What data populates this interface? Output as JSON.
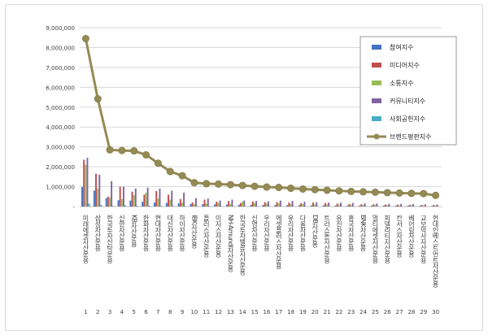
{
  "chart_data": {
    "type": "bar",
    "categories": [
      "미래에셋자산운용",
      "삼성자산운용",
      "한국투자신탁운용",
      "신한자산운용",
      "KB자산운용",
      "한화자산운용",
      "현대자산운용",
      "대신자산운용",
      "하이자산운용",
      "IBK자산운용",
      "플러스자산운용",
      "이지스자산운용",
      "NH-Amundi자산운용",
      "한국투자밸류자산운용",
      "신영자산운용",
      "우리자산운용",
      "에셋플러스자산운용",
      "유리자산운용",
      "다올자산운용",
      "DB자산운용",
      "트러스톤자산운용",
      "유진자산운용",
      "흥국자산운용",
      "BNK자산운용",
      "멀티에셋자산운용",
      "피델리티자산운용",
      "칸서스자산운용",
      "베어링자산운용",
      "교보악사자산운용",
      "현대인베스트먼트자산운용"
    ],
    "rank_labels": [
      "1",
      "2",
      "3",
      "4",
      "5",
      "6",
      "7",
      "8",
      "9",
      "10",
      "11",
      "12",
      "13",
      "14",
      "15",
      "16",
      "17",
      "18",
      "19",
      "20",
      "21",
      "22",
      "23",
      "24",
      "25",
      "26",
      "27",
      "28",
      "29",
      "30"
    ],
    "series": [
      {
        "name": "참여지수",
        "color": "#4472c4",
        "values": [
          980000,
          800000,
          420000,
          320000,
          300000,
          240000,
          200000,
          180000,
          160000,
          130000,
          120000,
          110000,
          100000,
          90000,
          85000,
          80000,
          75000,
          70000,
          65000,
          60000,
          55000,
          50000,
          48000,
          45000,
          42000,
          40000,
          38000,
          35000,
          32000,
          30000
        ]
      },
      {
        "name": "미디어지수",
        "color": "#c0504d",
        "values": [
          2350000,
          1650000,
          500000,
          1000000,
          750000,
          600000,
          780000,
          600000,
          380000,
          200000,
          350000,
          250000,
          280000,
          180000,
          260000,
          220000,
          220000,
          200000,
          170000,
          200000,
          180000,
          150000,
          130000,
          120000,
          110000,
          100000,
          100000,
          90000,
          80000,
          80000
        ]
      },
      {
        "name": "소통지수",
        "color": "#9bbb59",
        "values": [
          2100000,
          900000,
          450000,
          380000,
          580000,
          700000,
          400000,
          350000,
          200000,
          120000,
          150000,
          180000,
          120000,
          250000,
          170000,
          150000,
          160000,
          130000,
          120000,
          100000,
          100000,
          90000,
          80000,
          70000,
          90000,
          70000,
          60000,
          60000,
          50000,
          50000
        ]
      },
      {
        "name": "커뮤니티지수",
        "color": "#8064a2",
        "values": [
          2450000,
          1600000,
          1280000,
          1000000,
          900000,
          950000,
          900000,
          800000,
          700000,
          420000,
          400000,
          300000,
          350000,
          300000,
          280000,
          260000,
          300000,
          280000,
          240000,
          220000,
          200000,
          190000,
          180000,
          160000,
          150000,
          140000,
          130000,
          120000,
          110000,
          100000
        ]
      },
      {
        "name": "사회공헌지수",
        "color": "#4bacc6",
        "values": [
          150000,
          90000,
          30000,
          60000,
          40000,
          40000,
          30000,
          30000,
          20000,
          10000,
          20000,
          10000,
          20000,
          10000,
          10000,
          10000,
          10000,
          10000,
          10000,
          10000,
          10000,
          10000,
          10000,
          10000,
          10000,
          10000,
          10000,
          10000,
          10000,
          10000
        ]
      },
      {
        "name": "브랜드평판지수",
        "color": "#948a54",
        "render": "line",
        "values": [
          8450000,
          5420000,
          2850000,
          2820000,
          2800000,
          2600000,
          2180000,
          1760000,
          1550000,
          1200000,
          1150000,
          1130000,
          1100000,
          1060000,
          1020000,
          980000,
          960000,
          920000,
          880000,
          850000,
          820000,
          790000,
          760000,
          740000,
          720000,
          700000,
          680000,
          660000,
          650000,
          560000
        ]
      }
    ],
    "y_ticks": [
      "-",
      "1,000,000",
      "2,000,000",
      "3,000,000",
      "4,000,000",
      "5,000,000",
      "6,000,000",
      "7,000,000",
      "8,000,000",
      "9,000,000"
    ],
    "ylim": [
      0,
      9000000
    ],
    "grid": true,
    "legend_position": "right",
    "title": "",
    "xlabel": "",
    "ylabel": ""
  }
}
